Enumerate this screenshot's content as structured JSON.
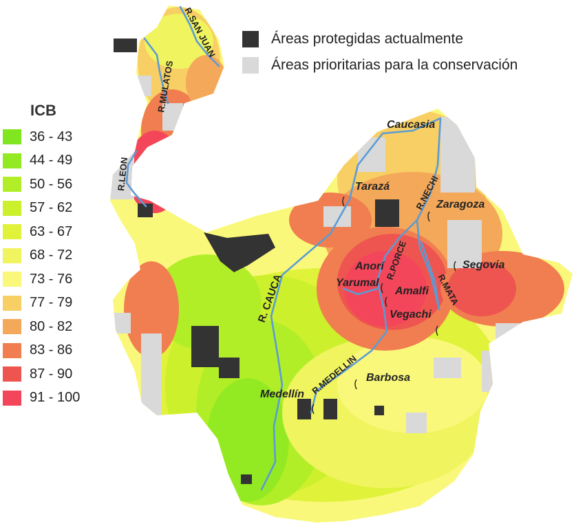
{
  "legend": {
    "title": "ICB",
    "classes": [
      {
        "range": "36 - 43",
        "color": "#7fe61f"
      },
      {
        "range": "44 - 49",
        "color": "#94ea22"
      },
      {
        "range": "50 - 56",
        "color": "#b2ee28"
      },
      {
        "range": "57 - 62",
        "color": "#ccf02c"
      },
      {
        "range": "63 - 67",
        "color": "#e0f23a"
      },
      {
        "range": "68 - 72",
        "color": "#f0f45e"
      },
      {
        "range": "73 - 76",
        "color": "#faf87a"
      },
      {
        "range": "77 - 79",
        "color": "#f7cf64"
      },
      {
        "range": "80 - 82",
        "color": "#f4a85a"
      },
      {
        "range": "83 - 86",
        "color": "#f07e50"
      },
      {
        "range": "87 - 90",
        "color": "#ef5550"
      },
      {
        "range": "91 - 100",
        "color": "#f4465a"
      }
    ]
  },
  "map_key": {
    "protected": {
      "label": "Áreas protegidas actualmente",
      "color": "#333333"
    },
    "priority": {
      "label": "Áreas prioritarias para la conservación",
      "color": "#d9d9d9"
    }
  },
  "rivers": {
    "color": "#5b9bd5",
    "labels": {
      "san_juan": "R.SAN JUAN",
      "mulatos": "R.MULATOS",
      "leon": "R.LEON",
      "cauca": "R. CAUCA",
      "nechi": "R.NECHI",
      "porce": "R.PORCE",
      "mata": "R.MATA",
      "medellin": "R.MEDELLIN"
    }
  },
  "towns": {
    "caucasia": "Caucasia",
    "taraza": "Tarazá",
    "zaragoza": "Zaragoza",
    "segovia": "Segovia",
    "anori": "Anorí",
    "yarumal": "Yarumal",
    "amalfi": "Amalfi",
    "vegachi": "Vegachi",
    "barbosa": "Barbosa",
    "medellin": "Medellín"
  }
}
